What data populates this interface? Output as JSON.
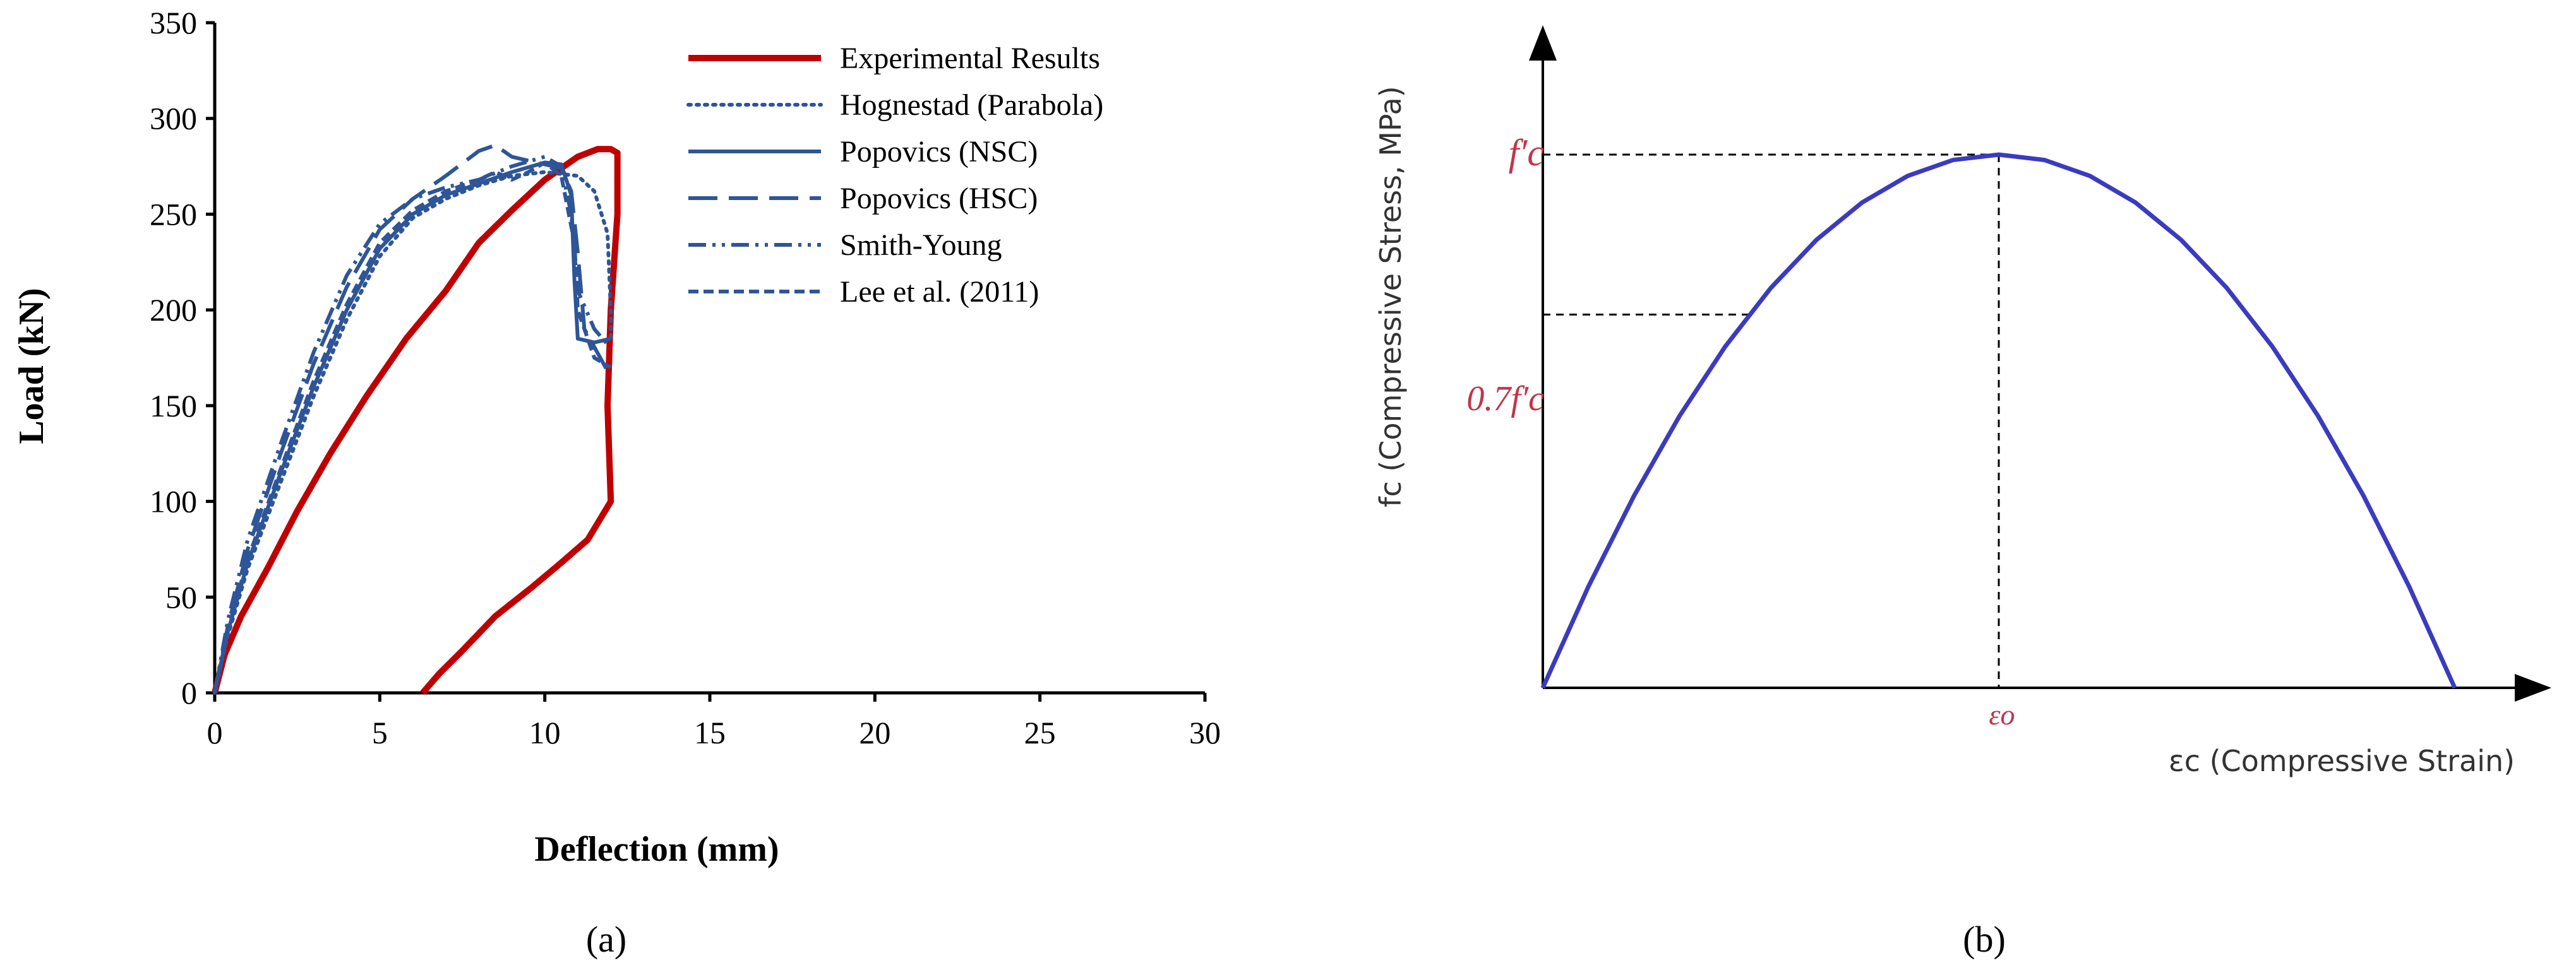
{
  "chart_data": [
    {
      "panel_label": "(a)",
      "type": "line",
      "xlabel": "Deflection (mm)",
      "ylabel": "Load (kN)",
      "xlim": [
        0,
        30
      ],
      "ylim": [
        0,
        350
      ],
      "xticks": [
        "0",
        "5",
        "10",
        "15",
        "20",
        "25",
        "30"
      ],
      "yticks": [
        "0",
        "50",
        "100",
        "150",
        "200",
        "250",
        "300",
        "350"
      ],
      "grid": false,
      "legend_position": "top-right",
      "series": [
        {
          "name": "Experimental Results",
          "color": "#c00000",
          "style": "solid-thick",
          "points": [
            [
              0,
              0
            ],
            [
              0.3,
              20
            ],
            [
              0.8,
              40
            ],
            [
              1.6,
              65
            ],
            [
              2.5,
              95
            ],
            [
              3.5,
              125
            ],
            [
              4.6,
              155
            ],
            [
              5.8,
              185
            ],
            [
              7.0,
              210
            ],
            [
              8.0,
              235
            ],
            [
              9.0,
              252
            ],
            [
              10.0,
              268
            ],
            [
              11.0,
              280
            ],
            [
              11.6,
              284
            ],
            [
              12.0,
              284
            ],
            [
              12.2,
              282
            ],
            [
              12.2,
              250
            ],
            [
              12.0,
              200
            ],
            [
              11.9,
              150
            ],
            [
              12.0,
              100
            ],
            [
              11.3,
              80
            ],
            [
              10.5,
              68
            ],
            [
              9.6,
              55
            ],
            [
              8.5,
              40
            ],
            [
              7.5,
              22
            ],
            [
              6.8,
              10
            ],
            [
              6.3,
              0
            ]
          ]
        },
        {
          "name": "Hognestad (Parabola)",
          "color": "#2e5597",
          "style": "dotted",
          "points": [
            [
              0,
              0
            ],
            [
              0.4,
              30
            ],
            [
              1.0,
              65
            ],
            [
              2.0,
              110
            ],
            [
              3.0,
              155
            ],
            [
              4.0,
              195
            ],
            [
              5.0,
              228
            ],
            [
              6.0,
              248
            ],
            [
              7.0,
              258
            ],
            [
              8.0,
              265
            ],
            [
              9.0,
              270
            ],
            [
              10.0,
              272
            ],
            [
              11.0,
              270
            ],
            [
              11.5,
              262
            ],
            [
              11.9,
              240
            ],
            [
              12.0,
              200
            ],
            [
              12.0,
              185
            ]
          ]
        },
        {
          "name": "Popovics (NSC)",
          "color": "#2e5597",
          "style": "solid",
          "points": [
            [
              0,
              0
            ],
            [
              0.4,
              32
            ],
            [
              1.0,
              68
            ],
            [
              2.0,
              115
            ],
            [
              3.0,
              160
            ],
            [
              4.0,
              200
            ],
            [
              5.0,
              232
            ],
            [
              6.0,
              250
            ],
            [
              7.0,
              260
            ],
            [
              8.0,
              266
            ],
            [
              9.0,
              272
            ],
            [
              10.0,
              277
            ],
            [
              10.5,
              276
            ],
            [
              10.8,
              260
            ],
            [
              10.9,
              215
            ],
            [
              11.0,
              185
            ],
            [
              11.5,
              183
            ],
            [
              12.0,
              185
            ]
          ]
        },
        {
          "name": "Popovics (HSC)",
          "color": "#2e5597",
          "style": "long-dash",
          "points": [
            [
              0,
              0
            ],
            [
              0.4,
              35
            ],
            [
              1.0,
              75
            ],
            [
              2.0,
              125
            ],
            [
              3.0,
              172
            ],
            [
              4.0,
              212
            ],
            [
              5.0,
              242
            ],
            [
              6.0,
              258
            ],
            [
              7.0,
              270
            ],
            [
              8.0,
              283
            ],
            [
              8.5,
              286
            ],
            [
              9.0,
              280
            ],
            [
              9.5,
              278
            ],
            [
              10.0,
              276
            ],
            [
              10.5,
              274
            ],
            [
              10.8,
              262
            ],
            [
              11.0,
              230
            ],
            [
              11.2,
              190
            ],
            [
              12.0,
              165
            ]
          ]
        },
        {
          "name": "Smith-Young",
          "color": "#2e5597",
          "style": "dash-dot-dot",
          "points": [
            [
              0,
              0
            ],
            [
              0.4,
              38
            ],
            [
              1.0,
              80
            ],
            [
              2.0,
              130
            ],
            [
              3.0,
              178
            ],
            [
              4.0,
              218
            ],
            [
              5.0,
              245
            ],
            [
              6.0,
              258
            ],
            [
              7.0,
              264
            ],
            [
              8.0,
              268
            ],
            [
              9.0,
              275
            ],
            [
              10.0,
              280
            ],
            [
              10.5,
              275
            ],
            [
              10.8,
              250
            ],
            [
              11.0,
              210
            ],
            [
              11.5,
              190
            ],
            [
              12.0,
              180
            ]
          ]
        },
        {
          "name": "Lee et al. (2011)",
          "color": "#2e5597",
          "style": "short-dash",
          "points": [
            [
              0,
              0
            ],
            [
              0.4,
              33
            ],
            [
              1.0,
              70
            ],
            [
              2.0,
              117
            ],
            [
              3.0,
              163
            ],
            [
              4.0,
              203
            ],
            [
              5.0,
              235
            ],
            [
              6.0,
              252
            ],
            [
              7.0,
              262
            ],
            [
              8.0,
              268
            ],
            [
              8.5,
              272
            ],
            [
              9.0,
              268
            ],
            [
              9.5,
              272
            ],
            [
              10.0,
              277
            ],
            [
              10.5,
              270
            ],
            [
              10.9,
              235
            ],
            [
              11.0,
              200
            ],
            [
              11.5,
              175
            ],
            [
              12.0,
              170
            ]
          ]
        }
      ]
    },
    {
      "panel_label": "(b)",
      "type": "line",
      "xlabel": "εc (Compressive Strain)",
      "ylabel": "fc (Compressive Stress, MPa)",
      "marker_labels": {
        "peak_stress": "f′c",
        "seventy_percent_stress": "0.7f′c",
        "peak_strain": "εo"
      },
      "series": [
        {
          "color": "#3b3bbf",
          "style": "solid",
          "points": [
            [
              0,
              0
            ],
            [
              0.1,
              0.19
            ],
            [
              0.2,
              0.36
            ],
            [
              0.3,
              0.51
            ],
            [
              0.4,
              0.64
            ],
            [
              0.5,
              0.75
            ],
            [
              0.6,
              0.84
            ],
            [
              0.7,
              0.91
            ],
            [
              0.8,
              0.96
            ],
            [
              0.9,
              0.99
            ],
            [
              1.0,
              1.0
            ],
            [
              1.1,
              0.99
            ],
            [
              1.2,
              0.96
            ],
            [
              1.3,
              0.91
            ],
            [
              1.4,
              0.84
            ],
            [
              1.5,
              0.75
            ],
            [
              1.6,
              0.64
            ],
            [
              1.7,
              0.51
            ],
            [
              1.8,
              0.36
            ],
            [
              1.9,
              0.19
            ],
            [
              2.0,
              0
            ]
          ]
        }
      ]
    }
  ]
}
